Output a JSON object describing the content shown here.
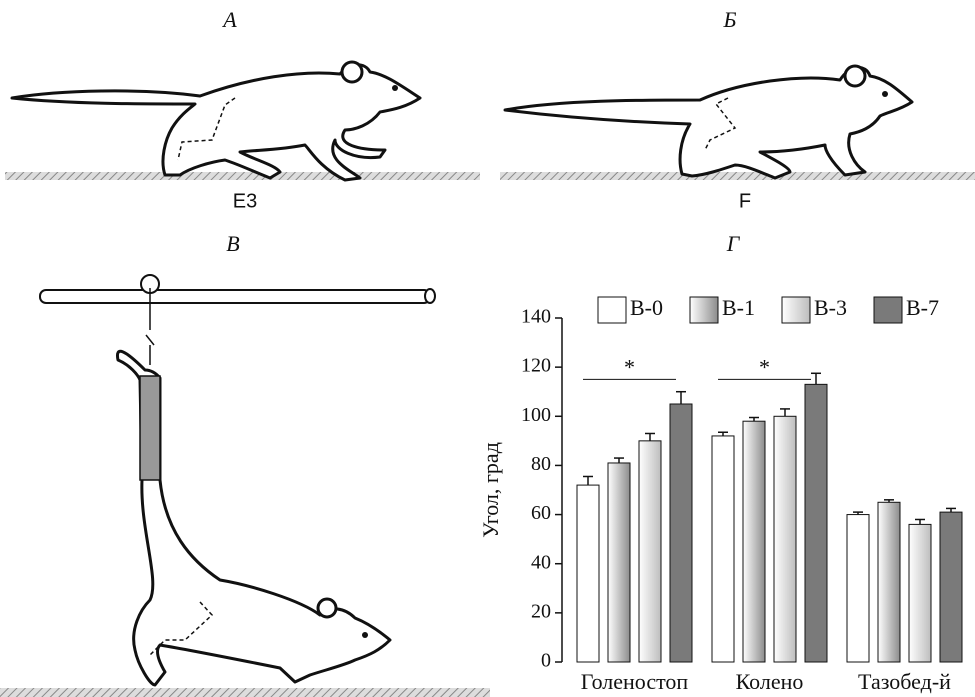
{
  "panels": [
    {
      "label": "А",
      "caption": "E3"
    },
    {
      "label": "Б",
      "caption": "F"
    },
    {
      "label": "В"
    },
    {
      "label": "Г"
    }
  ],
  "chart_data": {
    "type": "bar",
    "y_label": "Угол, град",
    "categories": [
      "Голеностоп",
      "Колено",
      "Тазобед-й"
    ],
    "series": [
      {
        "name": "В-0",
        "color": "#ffffff",
        "fill_style": "solid",
        "values": [
          72,
          92,
          60
        ],
        "errors": [
          3.5,
          1.5,
          1
        ]
      },
      {
        "name": "В-1",
        "color": "#8c8c8c",
        "fill_style": "gradient",
        "values": [
          81,
          98,
          65
        ],
        "errors": [
          2,
          1.5,
          1
        ]
      },
      {
        "name": "В-3",
        "color": "#bdbdbd",
        "fill_style": "gradient",
        "values": [
          90,
          100,
          56
        ],
        "errors": [
          3,
          3,
          2
        ]
      },
      {
        "name": "В-7",
        "color": "#7a7a7a",
        "fill_style": "solid",
        "values": [
          105,
          113,
          61
        ],
        "errors": [
          5,
          4.5,
          1.5
        ]
      }
    ],
    "annotations": [
      {
        "text": "*",
        "category": 0,
        "y": 115
      },
      {
        "text": "*",
        "category": 1,
        "y": 115
      }
    ],
    "ylim": [
      0,
      140
    ],
    "yticks": [
      0,
      20,
      40,
      60,
      80,
      100,
      120,
      140
    ],
    "grid": false
  }
}
